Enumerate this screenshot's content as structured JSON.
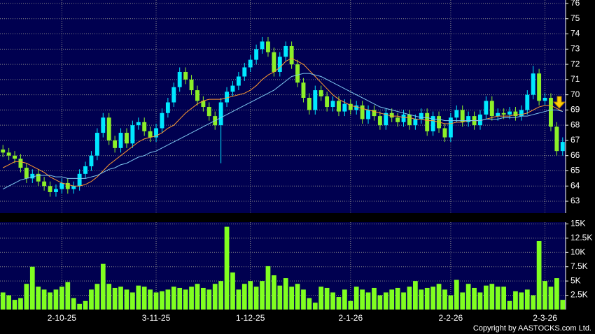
{
  "chart_data": [
    {
      "type": "candlestick",
      "categories": [
        null,
        null,
        null,
        null,
        null,
        null,
        null,
        null,
        null,
        null,
        "2-10-25",
        null,
        null,
        null,
        null,
        null,
        null,
        null,
        null,
        null,
        null,
        null,
        null,
        null,
        null,
        null,
        "3-11-25",
        null,
        null,
        null,
        null,
        null,
        null,
        null,
        null,
        null,
        null,
        null,
        null,
        null,
        null,
        null,
        "1-12-25",
        null,
        null,
        null,
        null,
        null,
        null,
        null,
        null,
        null,
        null,
        null,
        null,
        null,
        null,
        null,
        null,
        "2-1-26",
        null,
        null,
        null,
        null,
        null,
        null,
        null,
        null,
        null,
        null,
        null,
        null,
        null,
        null,
        null,
        null,
        "2-2-26",
        null,
        null,
        null,
        null,
        null,
        null,
        null,
        null,
        null,
        null,
        null,
        null,
        null,
        null,
        null,
        "2-3-26",
        null,
        null,
        null
      ],
      "open": [
        66.4,
        66.2,
        66.0,
        65.8,
        65.2,
        64.5,
        64.8,
        64.3,
        64.0,
        63.6,
        63.8,
        64.2,
        63.8,
        64.0,
        64.8,
        65.3,
        66.0,
        67.5,
        68.5,
        67.0,
        66.5,
        67.5,
        66.8,
        68.0,
        68.2,
        67.6,
        67.2,
        67.8,
        68.8,
        69.5,
        70.5,
        71.5,
        71.0,
        70.3,
        69.6,
        69.2,
        68.6,
        68.0,
        69.5,
        70.2,
        70.6,
        71.2,
        71.8,
        72.3,
        73.0,
        73.5,
        72.8,
        71.5,
        72.5,
        73.2,
        72.0,
        70.8,
        69.8,
        69.0,
        70.3,
        69.9,
        69.2,
        69.6,
        68.9,
        69.4,
        69.0,
        69.3,
        68.4,
        69.0,
        68.6,
        68.0,
        68.8,
        68.5,
        68.2,
        68.7,
        68.0,
        68.4,
        68.8,
        67.6,
        68.6,
        67.8,
        67.2,
        68.5,
        69.0,
        68.2,
        68.6,
        68.0,
        68.7,
        69.6,
        68.6,
        68.8,
        68.7,
        68.9,
        68.6,
        69.0,
        70.0,
        71.4,
        69.6,
        69.8,
        67.9,
        66.3
      ],
      "high": [
        66.7,
        66.5,
        66.3,
        66.1,
        65.5,
        65.1,
        65.1,
        64.6,
        64.3,
        64.1,
        64.5,
        64.5,
        64.3,
        65.1,
        65.6,
        66.3,
        67.8,
        68.8,
        68.8,
        67.3,
        67.8,
        67.8,
        68.3,
        68.5,
        68.5,
        67.9,
        68.1,
        69.1,
        69.8,
        70.8,
        71.8,
        71.8,
        71.3,
        70.6,
        69.9,
        69.5,
        68.9,
        69.8,
        70.5,
        70.9,
        71.5,
        72.1,
        72.6,
        73.3,
        73.8,
        73.8,
        73.1,
        72.8,
        73.5,
        73.5,
        72.3,
        71.1,
        70.1,
        70.6,
        70.6,
        70.2,
        69.9,
        69.9,
        69.7,
        69.7,
        69.6,
        69.6,
        69.3,
        69.3,
        68.9,
        69.1,
        69.1,
        68.8,
        69.0,
        69.0,
        68.7,
        69.1,
        69.1,
        68.9,
        68.9,
        68.1,
        68.8,
        69.3,
        69.3,
        68.9,
        68.9,
        69.0,
        69.9,
        69.9,
        69.1,
        69.1,
        69.2,
        69.2,
        69.3,
        70.3,
        71.9,
        71.7,
        70.1,
        70.1,
        68.2,
        67.2
      ],
      "low": [
        65.9,
        65.7,
        65.5,
        64.9,
        64.2,
        64.2,
        64.0,
        63.7,
        63.3,
        63.3,
        63.5,
        63.5,
        63.5,
        63.7,
        64.5,
        65.0,
        65.7,
        67.2,
        66.7,
        66.2,
        66.2,
        66.5,
        66.5,
        67.7,
        67.3,
        66.9,
        66.9,
        67.5,
        68.5,
        69.2,
        70.2,
        70.7,
        70.0,
        69.3,
        68.9,
        68.3,
        67.7,
        65.5,
        69.2,
        69.9,
        70.3,
        70.9,
        71.5,
        72.0,
        72.7,
        72.5,
        71.2,
        71.2,
        72.2,
        71.7,
        70.5,
        69.5,
        68.7,
        68.7,
        69.6,
        68.9,
        68.9,
        68.6,
        68.6,
        68.7,
        68.7,
        68.1,
        68.1,
        68.3,
        67.7,
        67.7,
        68.2,
        67.9,
        67.9,
        67.7,
        67.7,
        68.1,
        67.3,
        67.3,
        67.5,
        66.9,
        66.9,
        68.2,
        67.9,
        67.9,
        67.7,
        67.7,
        68.4,
        68.3,
        68.3,
        68.4,
        68.4,
        68.3,
        68.3,
        68.7,
        69.7,
        69.3,
        69.3,
        67.6,
        66.0,
        66.0
      ],
      "close": [
        66.2,
        66.0,
        65.8,
        65.2,
        64.5,
        64.8,
        64.3,
        64.0,
        63.6,
        63.8,
        64.2,
        63.8,
        64.0,
        64.8,
        65.3,
        66.0,
        67.5,
        68.5,
        67.0,
        66.5,
        67.5,
        66.8,
        68.0,
        68.2,
        67.6,
        67.2,
        67.8,
        68.8,
        69.5,
        70.5,
        71.5,
        71.0,
        70.3,
        69.6,
        69.2,
        68.6,
        68.0,
        69.5,
        70.2,
        70.6,
        71.2,
        71.8,
        72.3,
        73.0,
        73.5,
        72.8,
        71.5,
        72.5,
        73.2,
        72.0,
        70.8,
        69.8,
        69.0,
        70.3,
        69.9,
        69.2,
        69.6,
        68.9,
        69.4,
        69.0,
        69.3,
        68.4,
        69.0,
        68.6,
        68.0,
        68.8,
        68.5,
        68.2,
        68.7,
        68.0,
        68.4,
        68.8,
        67.6,
        68.6,
        67.8,
        67.2,
        68.5,
        69.0,
        68.2,
        68.6,
        68.0,
        68.7,
        69.6,
        68.6,
        68.8,
        68.7,
        68.9,
        68.6,
        69.0,
        70.0,
        71.4,
        69.6,
        69.8,
        67.9,
        66.3,
        66.9
      ],
      "up_color": "#00e8ff",
      "down_color": "#8cf028",
      "lines": [
        {
          "color": "#ff9a30",
          "values": [
            65.2,
            65.4,
            65.6,
            65.6,
            65.5,
            65.3,
            65.1,
            64.9,
            64.6,
            64.4,
            64.2,
            64.1,
            64.0,
            64.0,
            64.1,
            64.3,
            64.6,
            65.0,
            65.4,
            65.7,
            66.0,
            66.3,
            66.6,
            66.9,
            67.1,
            67.2,
            67.3,
            67.5,
            67.8,
            68.0,
            68.4,
            68.8,
            69.1,
            69.4,
            69.6,
            69.7,
            69.7,
            69.7,
            69.8,
            69.9,
            70.0,
            70.1,
            70.3,
            70.6,
            71.0,
            71.3,
            71.5,
            71.8,
            72.2,
            72.4,
            72.2,
            72.0,
            71.6,
            71.2,
            70.8,
            70.4,
            70.0,
            69.7,
            69.5,
            69.3,
            69.2,
            69.1,
            69.0,
            68.9,
            68.8,
            68.7,
            68.6,
            68.6,
            68.5,
            68.5,
            68.4,
            68.4,
            68.3,
            68.3,
            68.2,
            68.1,
            68.1,
            68.2,
            68.2,
            68.3,
            68.3,
            68.3,
            68.4,
            68.5,
            68.6,
            68.6,
            68.6,
            68.7,
            68.7,
            68.8,
            69.0,
            69.2,
            69.3,
            69.3,
            69.1,
            68.9
          ]
        },
        {
          "color": "#7ec8f0",
          "values": [
            63.8,
            64.0,
            64.2,
            64.4,
            64.5,
            64.6,
            64.7,
            64.7,
            64.7,
            64.6,
            64.6,
            64.5,
            64.5,
            64.5,
            64.5,
            64.6,
            64.7,
            64.9,
            65.1,
            65.2,
            65.4,
            65.5,
            65.7,
            65.9,
            66.0,
            66.2,
            66.3,
            66.5,
            66.7,
            66.9,
            67.1,
            67.3,
            67.5,
            67.7,
            67.9,
            68.1,
            68.3,
            68.5,
            68.7,
            68.9,
            69.1,
            69.3,
            69.5,
            69.7,
            69.9,
            70.1,
            70.3,
            70.6,
            70.9,
            71.2,
            71.3,
            71.4,
            71.4,
            71.3,
            71.2,
            71.0,
            70.8,
            70.6,
            70.4,
            70.2,
            70.0,
            69.8,
            69.6,
            69.4,
            69.2,
            69.1,
            69.0,
            68.9,
            68.8,
            68.7,
            68.6,
            68.5,
            68.5,
            68.4,
            68.4,
            68.3,
            68.3,
            68.3,
            68.3,
            68.3,
            68.3,
            68.3,
            68.4,
            68.4,
            68.4,
            68.5,
            68.5,
            68.5,
            68.6,
            68.6,
            68.7,
            68.8,
            68.9,
            69.0,
            69.0,
            68.9
          ]
        }
      ],
      "ylim": [
        62.22,
        76.23
      ],
      "yticks": [
        63,
        64,
        65,
        66,
        67,
        68,
        69,
        70,
        71,
        72,
        73,
        74,
        75,
        76
      ],
      "grid": true
    },
    {
      "type": "bar",
      "values": [
        3000,
        2500,
        1700,
        2000,
        4500,
        7500,
        4000,
        3500,
        3000,
        3500,
        4000,
        4800,
        2000,
        1000,
        1500,
        3500,
        4500,
        8000,
        4500,
        3800,
        4000,
        3500,
        3000,
        4200,
        4000,
        3500,
        3000,
        3200,
        3500,
        4000,
        3800,
        3500,
        4000,
        4500,
        3800,
        3500,
        4500,
        5000,
        14500,
        6500,
        3500,
        4500,
        5000,
        4000,
        5000,
        7600,
        6000,
        4200,
        5500,
        4000,
        4500,
        3500,
        2000,
        1200,
        4000,
        3800,
        3000,
        2200,
        3500,
        1500,
        4000,
        3500,
        3000,
        3800,
        2500,
        3000,
        3500,
        3800,
        3000,
        4000,
        5000,
        3500,
        3800,
        4000,
        4500,
        3500,
        2500,
        5200,
        3000,
        4500,
        3800,
        3000,
        4200,
        4500,
        4000,
        4000,
        1500,
        3200,
        3000,
        3500,
        2500,
        12000,
        5000,
        4000,
        5500,
        1700
      ],
      "color": "#80ff20",
      "ylim": [
        0,
        15300
      ],
      "yticks": [
        {
          "value": 2500,
          "label": "2.5K"
        },
        {
          "value": 5000,
          "label": "5K"
        },
        {
          "value": 7500,
          "label": "7.5K"
        },
        {
          "value": 10000,
          "label": "10K"
        },
        {
          "value": 12500,
          "label": "12.5K"
        },
        {
          "value": 15000,
          "label": "15K"
        }
      ],
      "grid": true
    }
  ],
  "copyright": "Copyright by AASTOCKS.com Ltd."
}
